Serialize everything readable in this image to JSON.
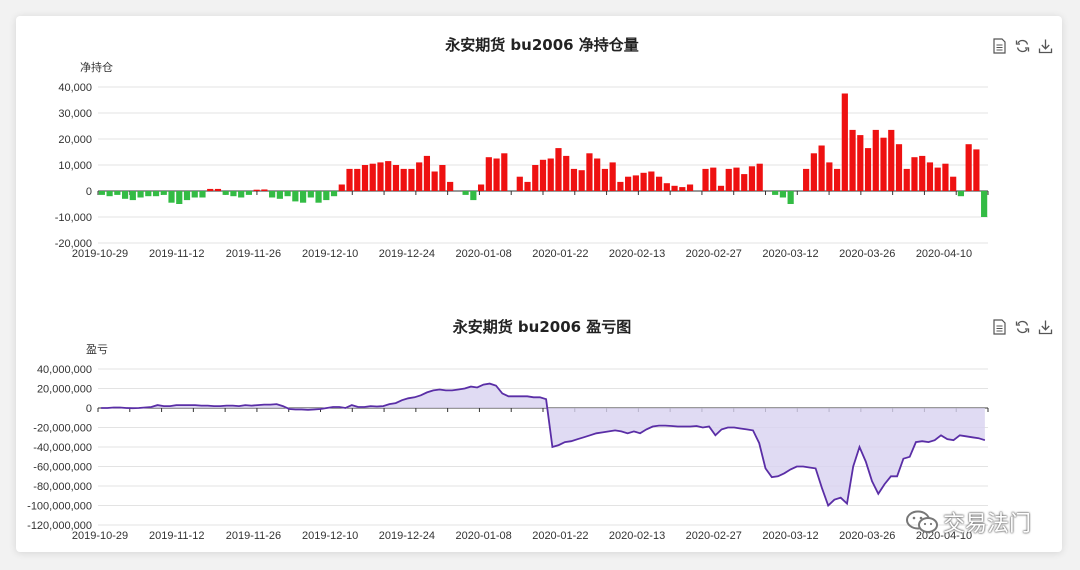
{
  "chart_data": [
    {
      "type": "bar",
      "title": "永安期货 bu2006 净持仓量",
      "ylabel": "净持仓",
      "ylim": [
        -20000,
        40000
      ],
      "yticks": [
        "40,000",
        "30,000",
        "20,000",
        "10,000",
        "0",
        "-10,000",
        "-20,000"
      ],
      "xticks": [
        "2019-10-29",
        "2019-11-12",
        "2019-11-26",
        "2019-12-10",
        "2019-12-24",
        "2020-01-08",
        "2020-01-22",
        "2020-02-13",
        "2020-02-27",
        "2020-03-12",
        "2020-03-26",
        "2020-04-10"
      ],
      "positive_color": "#ee1111",
      "negative_color": "#33bb44",
      "values": [
        -1500,
        -2000,
        -1500,
        -3000,
        -3500,
        -2500,
        -2000,
        -2000,
        -1500,
        -4500,
        -5000,
        -3500,
        -2500,
        -2500,
        800,
        800,
        -1500,
        -2000,
        -2500,
        -1500,
        500,
        600,
        -2500,
        -3000,
        -2000,
        -4000,
        -4500,
        -2500,
        -4500,
        -3500,
        -2000,
        2500,
        8500,
        8500,
        10000,
        10500,
        11000,
        11500,
        10000,
        8500,
        8500,
        11000,
        13500,
        7500,
        10000,
        3500,
        0,
        -1500,
        -3500,
        2500,
        13000,
        12500,
        14500,
        0,
        5500,
        3500,
        10000,
        12000,
        12500,
        16500,
        13500,
        8500,
        8000,
        14500,
        12500,
        8500,
        11000,
        3500,
        5500,
        6000,
        7000,
        7500,
        5500,
        3000,
        2000,
        1500,
        2500,
        0,
        8500,
        9000,
        2000,
        8500,
        9000,
        6500,
        9500,
        10500,
        0,
        -1500,
        -2500,
        -5000,
        0,
        8500,
        14500,
        17500,
        11000,
        8500,
        37500,
        23500,
        21500,
        16500,
        23500,
        20500,
        23500,
        18000,
        8500,
        13000,
        13500,
        11000,
        9000,
        10500,
        5500,
        -2000,
        18000,
        16000,
        -10000
      ]
    },
    {
      "type": "area",
      "title": "永安期货 bu2006 盈亏图",
      "ylabel": "盈亏",
      "ylim": [
        -120000000,
        40000000
      ],
      "yticks": [
        "40,000,000",
        "20,000,000",
        "0",
        "-20,000,000",
        "-40,000,000",
        "-60,000,000",
        "-80,000,000",
        "-100,000,000",
        "-120,000,000"
      ],
      "xticks": [
        "2019-10-29",
        "2019-11-12",
        "2019-11-26",
        "2019-12-10",
        "2019-12-24",
        "2020-01-08",
        "2020-01-22",
        "2020-02-13",
        "2020-02-27",
        "2020-03-12",
        "2020-03-26",
        "2020-04-10"
      ],
      "line_color": "#5a2ea6",
      "fill_color": "#d8d2f0",
      "values": [
        0,
        0,
        500000,
        500000,
        0,
        -200000,
        0,
        500000,
        1000000,
        3000000,
        2000000,
        2000000,
        3000000,
        3000000,
        3000000,
        3000000,
        2500000,
        2500000,
        2000000,
        2000000,
        2500000,
        2500000,
        2000000,
        3000000,
        2500000,
        3000000,
        3500000,
        3500000,
        4000000,
        2000000,
        -1000000,
        -1500000,
        -1500000,
        -2000000,
        -1500000,
        -1000000,
        0,
        1000000,
        1000000,
        0,
        3000000,
        1000000,
        1000000,
        2000000,
        1500000,
        2000000,
        4000000,
        5000000,
        8000000,
        10000000,
        11000000,
        13000000,
        16000000,
        18000000,
        19000000,
        18000000,
        18000000,
        19000000,
        20000000,
        22000000,
        21000000,
        24000000,
        25000000,
        23000000,
        15000000,
        12000000,
        12000000,
        12000000,
        12000000,
        11000000,
        11000000,
        9000000,
        -40000000,
        -38000000,
        -35000000,
        -34000000,
        -32000000,
        -30000000,
        -28000000,
        -26000000,
        -25000000,
        -24000000,
        -23000000,
        -24000000,
        -26000000,
        -24000000,
        -26000000,
        -22000000,
        -19000000,
        -18000000,
        -18000000,
        -18500000,
        -19000000,
        -19000000,
        -19000000,
        -18500000,
        -20000000,
        -19000000,
        -28000000,
        -22000000,
        -20000000,
        -20000000,
        -21000000,
        -22000000,
        -23000000,
        -36000000,
        -62000000,
        -71000000,
        -70000000,
        -67000000,
        -63000000,
        -60000000,
        -60000000,
        -61000000,
        -62000000,
        -82000000,
        -100000000,
        -94000000,
        -92000000,
        -98000000,
        -60000000,
        -40000000,
        -55000000,
        -75000000,
        -88000000,
        -78000000,
        -70000000,
        -70000000,
        -52000000,
        -50000000,
        -35000000,
        -34000000,
        -35000000,
        -33000000,
        -28000000,
        -32000000,
        -33000000,
        -28000000,
        -29000000,
        -30000000,
        -31000000,
        -33000000
      ]
    }
  ],
  "watermark": {
    "text": "交易法门"
  },
  "toolbox": {
    "icons": [
      "data-view-icon",
      "restore-icon",
      "save-image-icon"
    ]
  }
}
